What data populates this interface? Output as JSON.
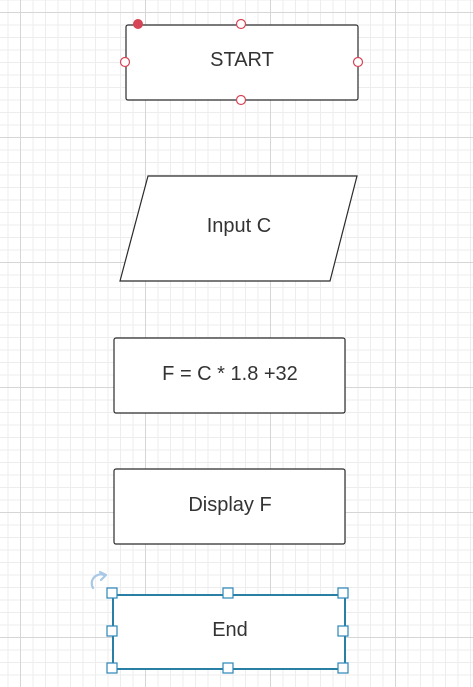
{
  "diagram": {
    "type": "flowchart",
    "nodes": [
      {
        "id": "start",
        "shape": "rounded-rectangle",
        "label": "START"
      },
      {
        "id": "input",
        "shape": "parallelogram",
        "label": "Input C"
      },
      {
        "id": "process",
        "shape": "rectangle",
        "label": "F = C * 1.8 +32"
      },
      {
        "id": "display",
        "shape": "rectangle",
        "label": "Display F"
      },
      {
        "id": "end",
        "shape": "rectangle",
        "label": "End",
        "selected": true
      }
    ]
  },
  "colors": {
    "shape_stroke": "#2b2b2b",
    "text": "#333333",
    "connection_point": "#d64555",
    "selection": "#2a86b8",
    "grid_major": "#d6d6d6",
    "grid_minor": "#ededed"
  }
}
